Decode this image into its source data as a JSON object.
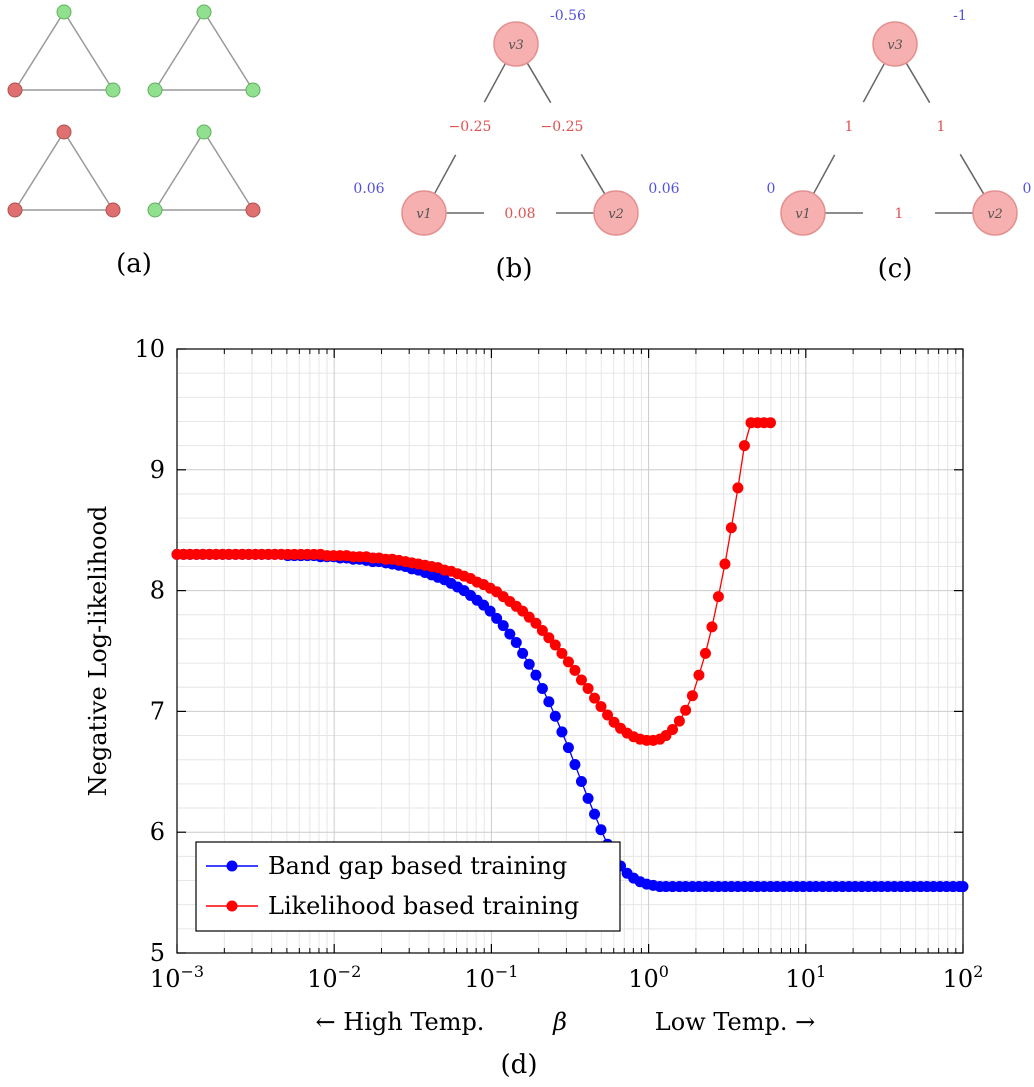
{
  "panels": {
    "a": {
      "caption": "(a)",
      "triangles": [
        {
          "top": "green",
          "left": "red",
          "right": "green"
        },
        {
          "top": "green",
          "left": "green",
          "right": "green"
        },
        {
          "top": "red",
          "left": "red",
          "right": "red"
        },
        {
          "top": "green",
          "left": "green",
          "right": "red"
        }
      ]
    },
    "b": {
      "caption": "(b)",
      "nodes": {
        "top": {
          "label": "v3",
          "weight": "-0.56"
        },
        "left": {
          "label": "v1",
          "weight": "0.06"
        },
        "right": {
          "label": "v2",
          "weight": "0.06"
        }
      },
      "edges": {
        "left": "−0.25",
        "right": "−0.25",
        "bottom": "0.08"
      }
    },
    "c": {
      "caption": "(c)",
      "nodes": {
        "top": {
          "label": "v3",
          "weight": "-1"
        },
        "left": {
          "label": "v1",
          "weight": "0"
        },
        "right": {
          "label": "v2",
          "weight": "0"
        }
      },
      "edges": {
        "left": "1",
        "right": "1",
        "bottom": "1"
      }
    }
  },
  "colors": {
    "green": "#90e090",
    "red": "#e07070",
    "node_fill": "#f6b0b0",
    "node_stroke": "#e49090",
    "weight_text": "#5050e0",
    "edge_text": "#e05050",
    "band_gap": "#0000ff",
    "likelihood": "#ff0000"
  },
  "chart_data": {
    "type": "line",
    "caption": "(d)",
    "xscale": "log",
    "xlim": [
      0.001,
      100
    ],
    "ylim": [
      5,
      10
    ],
    "xticks": [
      {
        "value": 0.001,
        "label": "10",
        "exp": "−3"
      },
      {
        "value": 0.01,
        "label": "10",
        "exp": "−2"
      },
      {
        "value": 0.1,
        "label": "10",
        "exp": "−1"
      },
      {
        "value": 1,
        "label": "10",
        "exp": "0"
      },
      {
        "value": 10,
        "label": "10",
        "exp": "1"
      },
      {
        "value": 100,
        "label": "10",
        "exp": "2"
      }
    ],
    "yticks": [
      5,
      6,
      7,
      8,
      9,
      10
    ],
    "ylabel": "Negative Log-likelihood",
    "xlabel": {
      "left": "← High Temp.",
      "symbol": "β",
      "right": "Low Temp. →"
    },
    "grid": true,
    "legend": "bottom-left",
    "series": [
      {
        "name": "Band gap based training",
        "color": "#0000ff",
        "x": [
          0.001,
          0.0011,
          0.00121,
          0.00133,
          0.00146,
          0.00161,
          0.00177,
          0.00195,
          0.00214,
          0.00236,
          0.0026,
          0.00286,
          0.00315,
          0.00346,
          0.00381,
          0.00419,
          0.00461,
          0.00507,
          0.00558,
          0.00614,
          0.00676,
          0.00743,
          0.00818,
          0.009,
          0.0099,
          0.0109,
          0.012,
          0.0132,
          0.0145,
          0.016,
          0.0176,
          0.0193,
          0.0213,
          0.0234,
          0.0258,
          0.0284,
          0.0312,
          0.0343,
          0.0378,
          0.0416,
          0.0457,
          0.0503,
          0.0554,
          0.0609,
          0.067,
          0.0737,
          0.0811,
          0.0892,
          0.0982,
          0.108,
          0.119,
          0.131,
          0.144,
          0.158,
          0.174,
          0.192,
          0.211,
          0.232,
          0.255,
          0.281,
          0.309,
          0.34,
          0.374,
          0.412,
          0.453,
          0.498,
          0.548,
          0.603,
          0.663,
          0.73,
          0.803,
          0.883,
          0.972,
          1.07,
          1.18,
          1.29,
          1.42,
          1.57,
          1.72,
          1.9,
          2.09,
          2.3,
          2.53,
          2.78,
          3.06,
          3.36,
          3.7,
          4.07,
          4.48,
          4.93,
          5.42,
          5.96,
          6.56,
          7.22,
          7.94,
          8.74,
          9.61,
          10.6,
          11.6,
          12.8,
          14.1,
          15.5,
          17.1,
          18.8,
          20.6,
          22.7,
          25,
          27.5,
          30.2,
          33.3,
          36.6,
          40.3,
          44.3,
          48.8,
          53.7,
          59,
          64.9,
          71.4,
          78.6,
          86.5,
          95.1,
          100
        ],
        "y": [
          8.3,
          8.3,
          8.3,
          8.3,
          8.3,
          8.3,
          8.3,
          8.3,
          8.3,
          8.3,
          8.3,
          8.3,
          8.3,
          8.3,
          8.3,
          8.3,
          8.3,
          8.29,
          8.29,
          8.29,
          8.29,
          8.29,
          8.28,
          8.28,
          8.28,
          8.27,
          8.27,
          8.26,
          8.26,
          8.25,
          8.24,
          8.24,
          8.23,
          8.22,
          8.21,
          8.2,
          8.18,
          8.17,
          8.15,
          8.13,
          8.11,
          8.09,
          8.06,
          8.03,
          8.0,
          7.96,
          7.92,
          7.88,
          7.83,
          7.77,
          7.71,
          7.64,
          7.57,
          7.48,
          7.39,
          7.3,
          7.19,
          7.08,
          6.96,
          6.83,
          6.7,
          6.56,
          6.42,
          6.28,
          6.15,
          6.02,
          5.9,
          5.8,
          5.72,
          5.66,
          5.62,
          5.59,
          5.57,
          5.56,
          5.55,
          5.55,
          5.55,
          5.55,
          5.55,
          5.55,
          5.55,
          5.55,
          5.55,
          5.55,
          5.55,
          5.55,
          5.55,
          5.55,
          5.55,
          5.55,
          5.55,
          5.55,
          5.55,
          5.55,
          5.55,
          5.55,
          5.55,
          5.55,
          5.55,
          5.55,
          5.55,
          5.55,
          5.55,
          5.55,
          5.55,
          5.55,
          5.55,
          5.55,
          5.55,
          5.55,
          5.55,
          5.55,
          5.55,
          5.55,
          5.55,
          5.55,
          5.55,
          5.55,
          5.55,
          5.55,
          5.55,
          5.55
        ]
      },
      {
        "name": "Likelihood based training",
        "color": "#ff0000",
        "x": [
          0.001,
          0.0011,
          0.00121,
          0.00133,
          0.00146,
          0.00161,
          0.00177,
          0.00195,
          0.00214,
          0.00236,
          0.0026,
          0.00286,
          0.00315,
          0.00346,
          0.00381,
          0.00419,
          0.00461,
          0.00507,
          0.00558,
          0.00614,
          0.00676,
          0.00743,
          0.00818,
          0.009,
          0.0099,
          0.0109,
          0.012,
          0.0132,
          0.0145,
          0.016,
          0.0176,
          0.0193,
          0.0213,
          0.0234,
          0.0258,
          0.0284,
          0.0312,
          0.0343,
          0.0378,
          0.0416,
          0.0457,
          0.0503,
          0.0554,
          0.0609,
          0.067,
          0.0737,
          0.0811,
          0.0892,
          0.0982,
          0.108,
          0.119,
          0.131,
          0.144,
          0.158,
          0.174,
          0.192,
          0.211,
          0.232,
          0.255,
          0.281,
          0.309,
          0.34,
          0.374,
          0.412,
          0.453,
          0.498,
          0.548,
          0.603,
          0.663,
          0.73,
          0.803,
          0.883,
          0.972,
          1.07,
          1.18,
          1.29,
          1.42,
          1.57,
          1.72,
          1.9,
          2.09,
          2.3,
          2.53,
          2.78,
          3.06,
          3.36,
          3.7,
          4.07,
          4.48,
          4.93,
          5.42,
          5.96
        ],
        "y": [
          8.3,
          8.3,
          8.3,
          8.3,
          8.3,
          8.3,
          8.3,
          8.3,
          8.3,
          8.3,
          8.3,
          8.3,
          8.3,
          8.3,
          8.3,
          8.3,
          8.3,
          8.3,
          8.3,
          8.3,
          8.3,
          8.3,
          8.3,
          8.29,
          8.29,
          8.29,
          8.29,
          8.28,
          8.28,
          8.28,
          8.27,
          8.27,
          8.26,
          8.26,
          8.25,
          8.24,
          8.23,
          8.22,
          8.21,
          8.2,
          8.19,
          8.17,
          8.16,
          8.14,
          8.12,
          8.1,
          8.07,
          8.05,
          8.02,
          7.99,
          7.95,
          7.91,
          7.87,
          7.83,
          7.78,
          7.73,
          7.67,
          7.61,
          7.55,
          7.48,
          7.41,
          7.34,
          7.26,
          7.19,
          7.11,
          7.04,
          6.97,
          6.91,
          6.86,
          6.82,
          6.79,
          6.77,
          6.76,
          6.76,
          6.77,
          6.8,
          6.85,
          6.92,
          7.01,
          7.13,
          7.3,
          7.48,
          7.7,
          7.95,
          8.22,
          8.52,
          8.85,
          9.2,
          9.39,
          9.39,
          9.39,
          9.39
        ]
      }
    ]
  }
}
